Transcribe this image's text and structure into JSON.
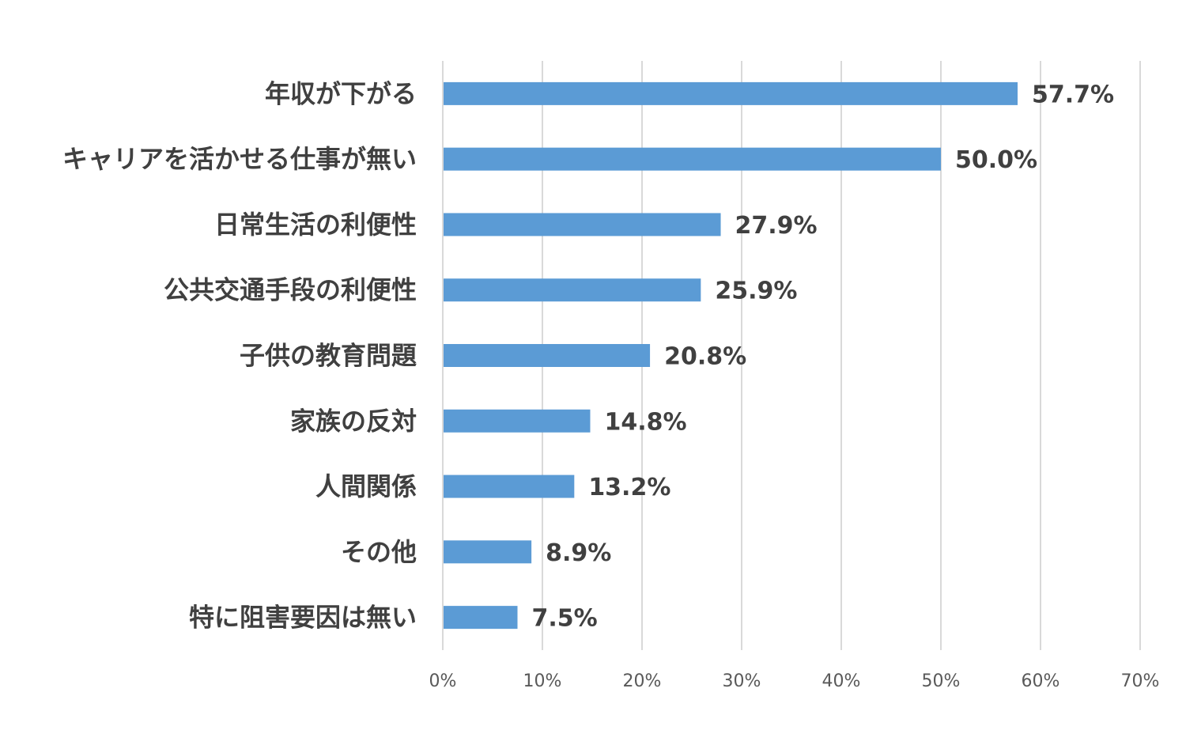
{
  "chart_data": {
    "type": "bar",
    "orientation": "horizontal",
    "categories": [
      "年収が下がる",
      "キャリアを活かせる仕事が無い",
      "日常生活の利便性",
      "公共交通手段の利便性",
      "子供の教育問題",
      "家族の反対",
      "人間関係",
      "その他",
      "特に阻害要因は無い"
    ],
    "values": [
      57.7,
      50.0,
      27.9,
      25.9,
      20.8,
      14.8,
      13.2,
      8.9,
      7.5
    ],
    "value_labels": [
      "57.7%",
      "50.0%",
      "27.9%",
      "25.9%",
      "20.8%",
      "14.8%",
      "13.2%",
      "8.9%",
      "7.5%"
    ],
    "x_ticks": [
      "0%",
      "10%",
      "20%",
      "30%",
      "40%",
      "50%",
      "60%",
      "70%"
    ],
    "xlim": [
      0,
      70
    ],
    "grid": true,
    "legend": "none",
    "bar_color": "#5b9bd5"
  }
}
